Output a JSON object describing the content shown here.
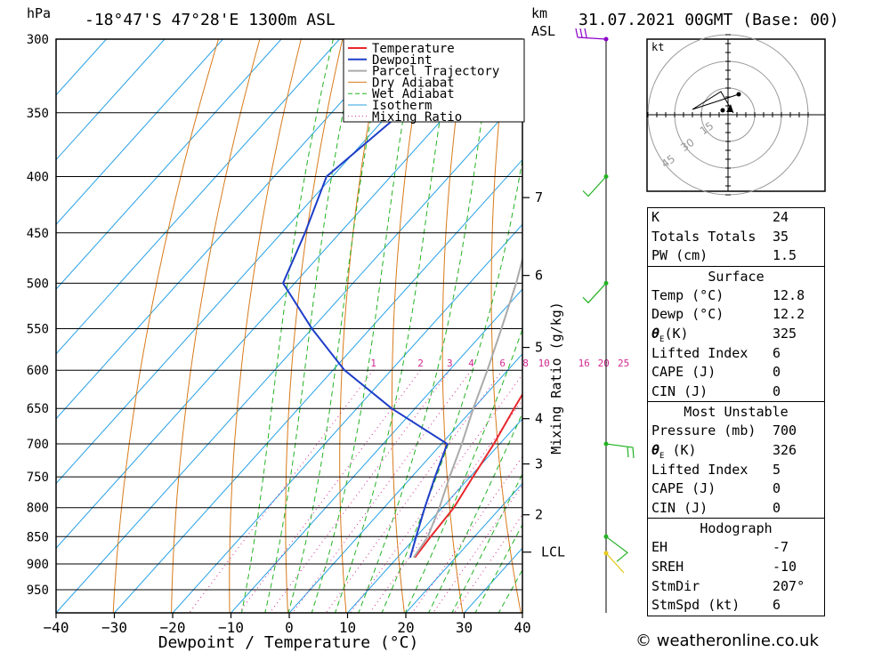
{
  "header": {
    "location": "-18°47'S  47°28'E  1300m  ASL",
    "datetime": "31.07.2021  00GMT  (Base: 00)",
    "hpa_label": "hPa",
    "km_label": "km",
    "asl_label": "ASL"
  },
  "chart_data": {
    "type": "line",
    "xlabel": "Dewpoint / Temperature (°C)",
    "ylabel": "hPa",
    "secondary_ylabel": "Mixing Ratio (g/kg)",
    "xlim": [
      -40,
      40
    ],
    "ylim": [
      990,
      300
    ],
    "x_ticks": [
      -40,
      -30,
      -20,
      -10,
      0,
      10,
      20,
      30,
      40
    ],
    "pressure_ticks": [
      300,
      350,
      400,
      450,
      500,
      550,
      600,
      650,
      700,
      750,
      800,
      850,
      900,
      950
    ],
    "km_ticks": [
      {
        "label": "7",
        "p": 418
      },
      {
        "label": "6",
        "p": 492
      },
      {
        "label": "5",
        "p": 572
      },
      {
        "label": "4",
        "p": 664
      },
      {
        "label": "3",
        "p": 730
      },
      {
        "label": "2",
        "p": 812
      }
    ],
    "lcl": {
      "label": "LCL",
      "p": 878
    },
    "mixing_ratio_labels": [
      "1",
      "2",
      "3",
      "4",
      "6",
      "8",
      "10",
      "16",
      "20",
      "25"
    ],
    "mixing_ratio_values": [
      1,
      2,
      3,
      4,
      6,
      8,
      10,
      16,
      20,
      25
    ],
    "legend": [
      "Temperature",
      "Dewpoint",
      "Parcel Trajectory",
      "Dry Adiabat",
      "Wet Adiabat",
      "Isotherm",
      "Mixing Ratio"
    ],
    "legend_placement": "top-center",
    "series": [
      {
        "name": "Temperature",
        "color": "#e8282c",
        "points": [
          [
            13.0,
            888
          ],
          [
            12.5,
            850
          ],
          [
            12.0,
            800
          ],
          [
            10.5,
            750
          ],
          [
            9.0,
            700
          ],
          [
            7.0,
            650
          ],
          [
            5.0,
            600
          ],
          [
            3.0,
            550
          ],
          [
            1.0,
            500
          ],
          [
            -4.0,
            450
          ],
          [
            -9.5,
            400
          ],
          [
            -16.5,
            350
          ],
          [
            -25.0,
            300
          ]
        ]
      },
      {
        "name": "Dewpoint",
        "color": "#1e3ec8",
        "points": [
          [
            12.2,
            888
          ],
          [
            10.0,
            850
          ],
          [
            7.0,
            800
          ],
          [
            4.0,
            750
          ],
          [
            1.0,
            700
          ],
          [
            -14.0,
            650
          ],
          [
            -28.0,
            600
          ],
          [
            -40.0,
            550
          ],
          [
            -52.0,
            500
          ],
          [
            -56.0,
            450
          ],
          [
            -61.0,
            400
          ],
          [
            -58.0,
            350
          ],
          [
            -56.0,
            300
          ]
        ]
      },
      {
        "name": "Parcel Trajectory",
        "color": "#aaaaaa",
        "points": [
          [
            12.8,
            888
          ],
          [
            12.0,
            850
          ],
          [
            9.5,
            800
          ],
          [
            6.5,
            750
          ],
          [
            3.5,
            700
          ],
          [
            0.0,
            650
          ],
          [
            -3.5,
            600
          ],
          [
            -7.5,
            550
          ],
          [
            -12.0,
            500
          ],
          [
            -17.5,
            450
          ],
          [
            -23.5,
            400
          ],
          [
            -31.0,
            350
          ],
          [
            -40.0,
            300
          ]
        ]
      }
    ],
    "dry_adiabat_thetas_c": [
      -30,
      -20,
      -10,
      0,
      10,
      20,
      30,
      40,
      50,
      60,
      70,
      80,
      90,
      100,
      110,
      120,
      130,
      140,
      150,
      160,
      170,
      180
    ],
    "wet_adiabat_thetaw_c": [
      -8,
      -4,
      0,
      4,
      8,
      12,
      16,
      20,
      24,
      28,
      32,
      36
    ],
    "isotherm_step": 10
  },
  "colors": {
    "temperature": "#e8282c",
    "dewpoint": "#1e3ec8",
    "parcel": "#aaaaaa",
    "dry_adiabat": "#d87a1a",
    "wet_adiabat": "#23b223",
    "isotherm": "#26a0e6",
    "mixing_ratio": "#d02890",
    "wind_300": "#8b00c8",
    "wind_low": "#23b223",
    "wind_surface": "#e6c81e"
  },
  "wind_profile": [
    {
      "p": 300,
      "color": "#8b00c8",
      "barbs": "purple"
    },
    {
      "p": 400,
      "color": "#23b223"
    },
    {
      "p": 500,
      "color": "#23b223"
    },
    {
      "p": 700,
      "color": "#23b223"
    },
    {
      "p": 850,
      "color": "#23b223"
    },
    {
      "p": 880,
      "color": "#e6c81e"
    }
  ],
  "hodograph": {
    "unit_label": "kt",
    "ring_labels": [
      "15",
      "30",
      "45"
    ]
  },
  "indices": {
    "k_label": "K",
    "k_value": "24",
    "tt_label": "Totals Totals",
    "tt_value": "35",
    "pw_label": "PW (cm)",
    "pw_value": "1.5"
  },
  "surface": {
    "title": "Surface",
    "temp_label": "Temp (°C)",
    "temp_value": "12.8",
    "dewp_label": "Dewp (°C)",
    "dewp_value": "12.2",
    "theta_label": "(K)",
    "theta_value": "325",
    "li_label": "Lifted Index",
    "li_value": "6",
    "cape_label": "CAPE (J)",
    "cape_value": "0",
    "cin_label": "CIN (J)",
    "cin_value": "0"
  },
  "most_unstable": {
    "title": "Most Unstable",
    "pressure_label": "Pressure (mb)",
    "pressure_value": "700",
    "theta_label": "(K)",
    "theta_value": "326",
    "li_label": "Lifted Index",
    "li_value": "5",
    "cape_label": "CAPE (J)",
    "cape_value": "0",
    "cin_label": "CIN (J)",
    "cin_value": "0"
  },
  "hodo_table": {
    "title": "Hodograph",
    "eh_label": "EH",
    "eh_value": "-7",
    "sreh_label": "SREH",
    "sreh_value": "-10",
    "stmdir_label": "StmDir",
    "stmdir_value": "207°",
    "stmspd_label": "StmSpd (kt)",
    "stmspd_value": "6"
  },
  "footer": {
    "copyright": "© weatheronline.co.uk"
  }
}
